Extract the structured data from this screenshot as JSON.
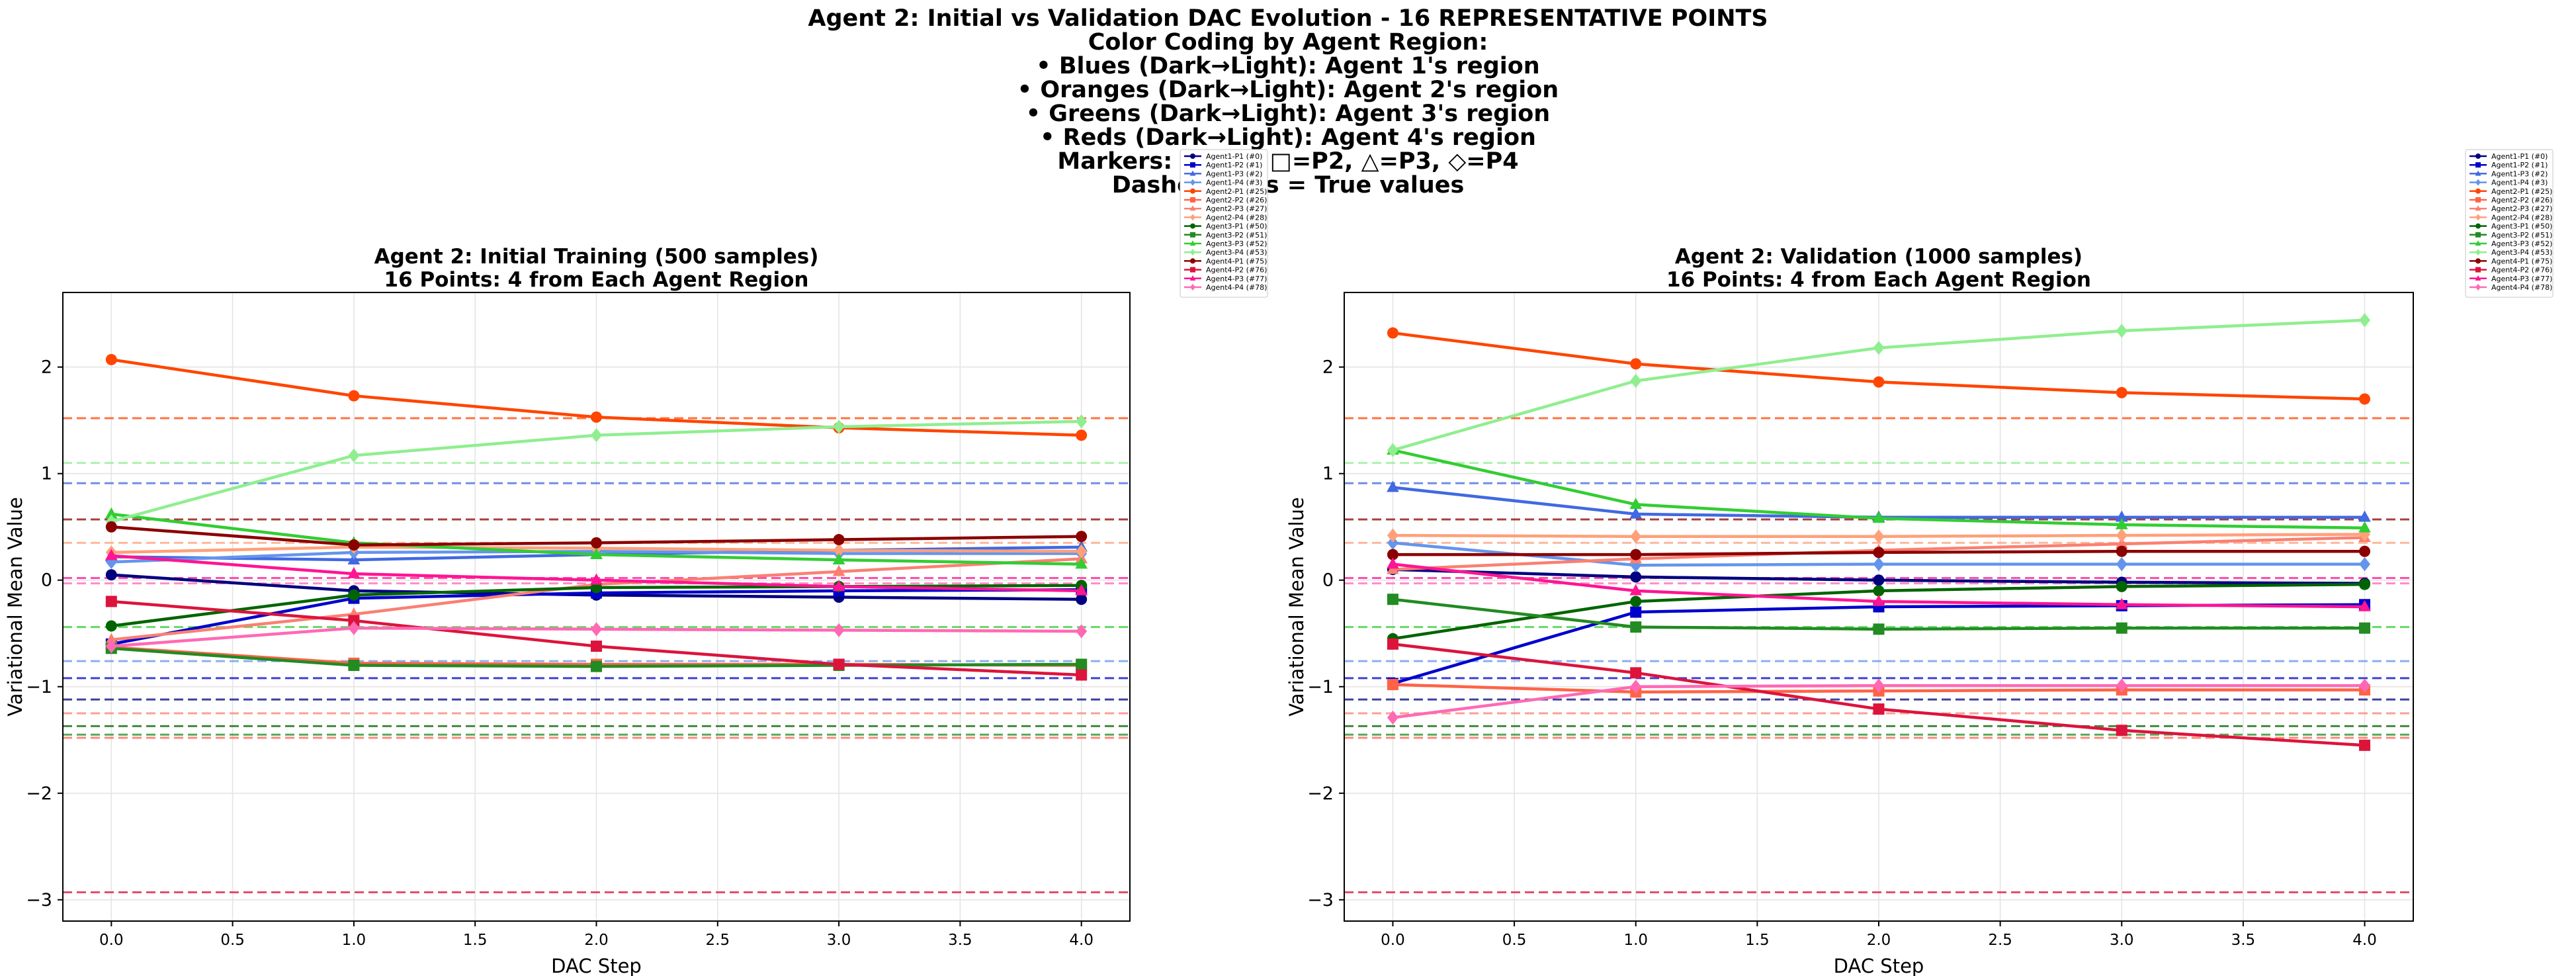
{
  "figure": {
    "title_lines": [
      "Agent 2: Initial vs Validation DAC Evolution - 16 REPRESENTATIVE POINTS",
      "",
      "Color Coding by Agent Region:",
      "• Blues (Dark→Light): Agent 1's region",
      "• Oranges (Dark→Light): Agent 2's region",
      "• Greens (Dark→Light): Agent 3's region",
      "• Reds (Dark→Light): Agent 4's region",
      "",
      "Markers: ○=P1, □=P2, △=P3, ◇=P4",
      "Dashed lines = True values"
    ]
  },
  "chart_data": [
    {
      "type": "line",
      "title": [
        "Agent 2: Initial Training (500 samples)",
        "16 Points: 4 from Each Agent Region"
      ],
      "xlabel": "DAC Step",
      "ylabel": "Variational Mean Value",
      "xlim": [
        -0.2,
        4.2
      ],
      "ylim": [
        -3.2,
        2.7
      ],
      "xticks": [
        0.0,
        0.5,
        1.0,
        1.5,
        2.0,
        2.5,
        3.0,
        3.5,
        4.0
      ],
      "xtick_labels": [
        "0.0",
        "0.5",
        "1.0",
        "1.5",
        "2.0",
        "2.5",
        "3.0",
        "3.5",
        "4.0"
      ],
      "yticks": [
        -3,
        -2,
        -1,
        0,
        1,
        2
      ],
      "ytick_labels": [
        "−3",
        "−2",
        "−1",
        "0",
        "1",
        "2"
      ],
      "grid": true,
      "legend_position": "outside-right",
      "x": [
        0,
        1,
        2,
        3,
        4
      ],
      "series": [
        {
          "name": "Agent1-P1 (#0)",
          "color": "#000080",
          "marker": "circle",
          "values": [
            0.05,
            -0.1,
            -0.14,
            -0.16,
            -0.18
          ],
          "true_value": -1.12
        },
        {
          "name": "Agent1-P2 (#1)",
          "color": "#0000cd",
          "marker": "square",
          "values": [
            -0.6,
            -0.17,
            -0.12,
            -0.1,
            -0.09
          ],
          "true_value": -0.92
        },
        {
          "name": "Agent1-P3 (#2)",
          "color": "#4169e1",
          "marker": "triangle",
          "values": [
            0.22,
            0.19,
            0.24,
            0.28,
            0.31
          ],
          "true_value": 0.91
        },
        {
          "name": "Agent1-P4 (#3)",
          "color": "#6495ed",
          "marker": "diamond",
          "values": [
            0.17,
            0.26,
            0.27,
            0.25,
            0.25
          ],
          "true_value": -0.76
        },
        {
          "name": "Agent2-P1 (#25)",
          "color": "#ff4500",
          "marker": "circle",
          "values": [
            2.07,
            1.73,
            1.53,
            1.43,
            1.36
          ],
          "true_value": 1.52
        },
        {
          "name": "Agent2-P2 (#26)",
          "color": "#ff6347",
          "marker": "square",
          "values": [
            -0.63,
            -0.78,
            -0.79,
            -0.79,
            -0.8
          ],
          "true_value": -1.48
        },
        {
          "name": "Agent2-P3 (#27)",
          "color": "#fa8072",
          "marker": "triangle",
          "values": [
            -0.56,
            -0.32,
            -0.04,
            0.08,
            0.2
          ],
          "true_value": -1.25
        },
        {
          "name": "Agent2-P4 (#28)",
          "color": "#ffa07a",
          "marker": "diamond",
          "values": [
            0.26,
            0.31,
            0.3,
            0.28,
            0.27
          ],
          "true_value": 0.35
        },
        {
          "name": "Agent3-P1 (#50)",
          "color": "#006400",
          "marker": "circle",
          "values": [
            -0.43,
            -0.14,
            -0.07,
            -0.06,
            -0.05
          ],
          "true_value": -1.37
        },
        {
          "name": "Agent3-P2 (#51)",
          "color": "#228b22",
          "marker": "square",
          "values": [
            -0.64,
            -0.8,
            -0.81,
            -0.8,
            -0.79
          ],
          "true_value": -1.45
        },
        {
          "name": "Agent3-P3 (#52)",
          "color": "#32cd32",
          "marker": "triangle",
          "values": [
            0.62,
            0.35,
            0.24,
            0.19,
            0.15
          ],
          "true_value": -0.44
        },
        {
          "name": "Agent3-P4 (#53)",
          "color": "#90ee90",
          "marker": "diamond",
          "values": [
            0.55,
            1.17,
            1.36,
            1.44,
            1.49
          ],
          "true_value": 1.1
        },
        {
          "name": "Agent4-P1 (#75)",
          "color": "#8b0000",
          "marker": "circle",
          "values": [
            0.5,
            0.33,
            0.35,
            0.38,
            0.41
          ],
          "true_value": 0.57
        },
        {
          "name": "Agent4-P2 (#76)",
          "color": "#dc143c",
          "marker": "square",
          "values": [
            -0.2,
            -0.38,
            -0.62,
            -0.79,
            -0.89
          ],
          "true_value": -2.93
        },
        {
          "name": "Agent4-P3 (#77)",
          "color": "#ff1493",
          "marker": "triangle",
          "values": [
            0.23,
            0.06,
            0.0,
            -0.06,
            -0.1
          ],
          "true_value": 0.02
        },
        {
          "name": "Agent4-P4 (#78)",
          "color": "#ff69b4",
          "marker": "diamond",
          "values": [
            -0.62,
            -0.45,
            -0.46,
            -0.47,
            -0.48
          ],
          "true_value": -0.03
        }
      ]
    },
    {
      "type": "line",
      "title": [
        "Agent 2: Validation (1000 samples)",
        "16 Points: 4 from Each Agent Region"
      ],
      "xlabel": "DAC Step",
      "ylabel": "Variational Mean Value",
      "xlim": [
        -0.2,
        4.2
      ],
      "ylim": [
        -3.2,
        2.7
      ],
      "xticks": [
        0.0,
        0.5,
        1.0,
        1.5,
        2.0,
        2.5,
        3.0,
        3.5,
        4.0
      ],
      "xtick_labels": [
        "0.0",
        "0.5",
        "1.0",
        "1.5",
        "2.0",
        "2.5",
        "3.0",
        "3.5",
        "4.0"
      ],
      "yticks": [
        -3,
        -2,
        -1,
        0,
        1,
        2
      ],
      "ytick_labels": [
        "−3",
        "−2",
        "−1",
        "0",
        "1",
        "2"
      ],
      "grid": true,
      "legend_position": "outside-right",
      "x": [
        0,
        1,
        2,
        3,
        4
      ],
      "series": [
        {
          "name": "Agent1-P1 (#0)",
          "color": "#000080",
          "marker": "circle",
          "values": [
            0.1,
            0.03,
            0.0,
            -0.02,
            -0.03
          ],
          "true_value": -1.12
        },
        {
          "name": "Agent1-P2 (#1)",
          "color": "#0000cd",
          "marker": "square",
          "values": [
            -0.97,
            -0.3,
            -0.25,
            -0.24,
            -0.23
          ],
          "true_value": -0.92
        },
        {
          "name": "Agent1-P3 (#2)",
          "color": "#4169e1",
          "marker": "triangle",
          "values": [
            0.87,
            0.62,
            0.59,
            0.59,
            0.59
          ],
          "true_value": 0.91
        },
        {
          "name": "Agent1-P4 (#3)",
          "color": "#6495ed",
          "marker": "diamond",
          "values": [
            0.35,
            0.14,
            0.15,
            0.15,
            0.15
          ],
          "true_value": -0.76
        },
        {
          "name": "Agent2-P1 (#25)",
          "color": "#ff4500",
          "marker": "circle",
          "values": [
            2.32,
            2.03,
            1.86,
            1.76,
            1.7
          ],
          "true_value": 1.52
        },
        {
          "name": "Agent2-P2 (#26)",
          "color": "#ff6347",
          "marker": "square",
          "values": [
            -0.98,
            -1.05,
            -1.04,
            -1.03,
            -1.03
          ],
          "true_value": -1.48
        },
        {
          "name": "Agent2-P3 (#27)",
          "color": "#fa8072",
          "marker": "triangle",
          "values": [
            0.1,
            0.2,
            0.28,
            0.34,
            0.4
          ],
          "true_value": -1.25
        },
        {
          "name": "Agent2-P4 (#28)",
          "color": "#ffa07a",
          "marker": "diamond",
          "values": [
            0.42,
            0.41,
            0.41,
            0.42,
            0.43
          ],
          "true_value": 0.35
        },
        {
          "name": "Agent3-P1 (#50)",
          "color": "#006400",
          "marker": "circle",
          "values": [
            -0.55,
            -0.2,
            -0.1,
            -0.06,
            -0.04
          ],
          "true_value": -1.37
        },
        {
          "name": "Agent3-P2 (#51)",
          "color": "#228b22",
          "marker": "square",
          "values": [
            -0.18,
            -0.44,
            -0.46,
            -0.45,
            -0.45
          ],
          "true_value": -1.45
        },
        {
          "name": "Agent3-P3 (#52)",
          "color": "#32cd32",
          "marker": "triangle",
          "values": [
            1.22,
            0.71,
            0.58,
            0.52,
            0.49
          ],
          "true_value": -0.44
        },
        {
          "name": "Agent3-P4 (#53)",
          "color": "#90ee90",
          "marker": "diamond",
          "values": [
            1.22,
            1.87,
            2.18,
            2.34,
            2.44
          ],
          "true_value": 1.1
        },
        {
          "name": "Agent4-P1 (#75)",
          "color": "#8b0000",
          "marker": "circle",
          "values": [
            0.24,
            0.24,
            0.26,
            0.27,
            0.27
          ],
          "true_value": 0.57
        },
        {
          "name": "Agent4-P2 (#76)",
          "color": "#dc143c",
          "marker": "square",
          "values": [
            -0.6,
            -0.87,
            -1.21,
            -1.41,
            -1.55
          ],
          "true_value": -2.93
        },
        {
          "name": "Agent4-P3 (#77)",
          "color": "#ff1493",
          "marker": "triangle",
          "values": [
            0.15,
            -0.1,
            -0.2,
            -0.23,
            -0.25
          ],
          "true_value": 0.02
        },
        {
          "name": "Agent4-P4 (#78)",
          "color": "#ff69b4",
          "marker": "diamond",
          "values": [
            -1.29,
            -1.0,
            -0.99,
            -0.99,
            -0.99
          ],
          "true_value": -0.03
        }
      ]
    }
  ]
}
